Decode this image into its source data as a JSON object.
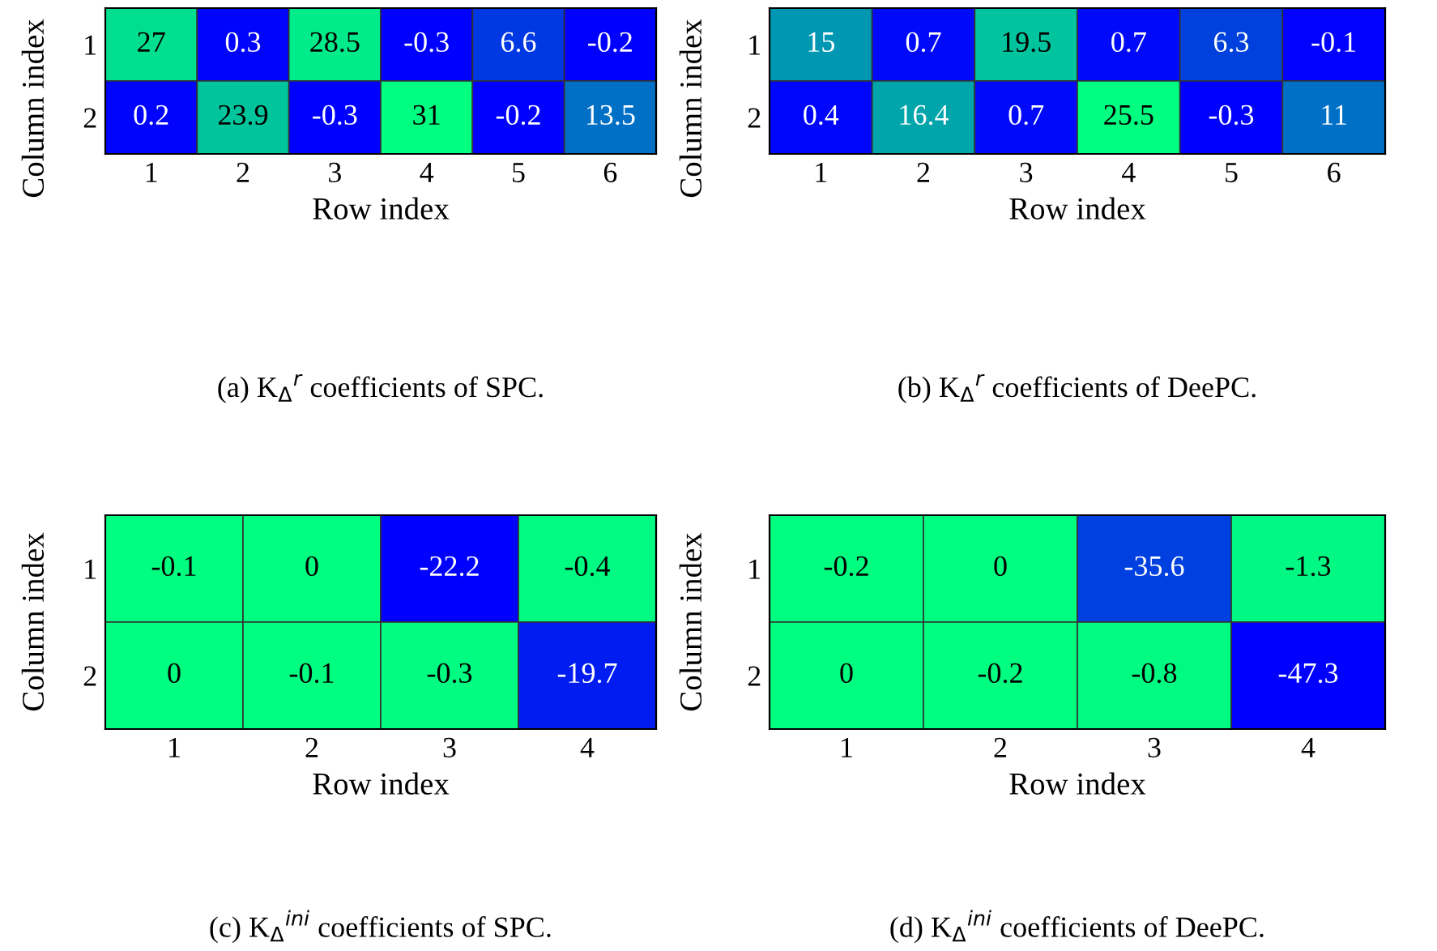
{
  "chart_data": [
    {
      "type": "heatmap",
      "title": "(a) K$_{Δ}$$^{r}$ coefficients of SPC.",
      "xlabel": "Row index",
      "ylabel": "Column index",
      "categories": [
        "1",
        "2",
        "3",
        "4",
        "5",
        "6"
      ],
      "y_categories": [
        "1",
        "2"
      ],
      "cells": [
        [
          27,
          0.3,
          28.5,
          -0.3,
          6.6,
          -0.2
        ],
        [
          0.2,
          23.9,
          -0.3,
          31,
          -0.2,
          13.5
        ]
      ],
      "cell_labels": [
        [
          "27",
          "0.3",
          "28.5",
          "-0.3",
          "6.6",
          "-0.2"
        ],
        [
          "0.2",
          "23.9",
          "-0.3",
          "31",
          "-0.2",
          "13.5"
        ]
      ]
    },
    {
      "type": "heatmap",
      "title": "(b) K$_{Δ}$$^{r}$ coefficients of DeePC.",
      "xlabel": "Row index",
      "ylabel": "Column index",
      "categories": [
        "1",
        "2",
        "3",
        "4",
        "5",
        "6"
      ],
      "y_categories": [
        "1",
        "2"
      ],
      "cells": [
        [
          15,
          0.7,
          19.5,
          0.7,
          6.3,
          -0.1
        ],
        [
          0.4,
          16.4,
          0.7,
          25.5,
          -0.3,
          11
        ]
      ],
      "cell_labels": [
        [
          "15",
          "0.7",
          "19.5",
          "0.7",
          "6.3",
          "-0.1"
        ],
        [
          "0.4",
          "16.4",
          "0.7",
          "25.5",
          "-0.3",
          "11"
        ]
      ]
    },
    {
      "type": "heatmap",
      "title": "(c) K$_{Δ}$$^{ini}$ coefficients of SPC.",
      "xlabel": "Row index",
      "ylabel": "Column index",
      "categories": [
        "1",
        "2",
        "3",
        "4"
      ],
      "y_categories": [
        "1",
        "2"
      ],
      "cells": [
        [
          -0.1,
          0,
          -22.2,
          -0.4
        ],
        [
          0,
          -0.1,
          -0.3,
          -19.7
        ]
      ],
      "cell_labels": [
        [
          "-0.1",
          "0",
          "-22.2",
          "-0.4"
        ],
        [
          "0",
          "-0.1",
          "-0.3",
          "-19.7"
        ]
      ]
    },
    {
      "type": "heatmap",
      "title": "(d) K$_{Δ}$$^{ini}$ coefficients of DeePC.",
      "xlabel": "Row index",
      "ylabel": "Column index",
      "categories": [
        "1",
        "2",
        "3",
        "4"
      ],
      "y_categories": [
        "1",
        "2"
      ],
      "cells": [
        [
          -0.2,
          0,
          -35.6,
          -1.3
        ],
        [
          0,
          -0.2,
          -0.8,
          -47.3
        ]
      ],
      "cell_labels": [
        [
          "-0.2",
          "0",
          "-35.6",
          "-1.3"
        ],
        [
          "0",
          "-0.2",
          "-0.8",
          "-47.3"
        ]
      ]
    }
  ]
}
